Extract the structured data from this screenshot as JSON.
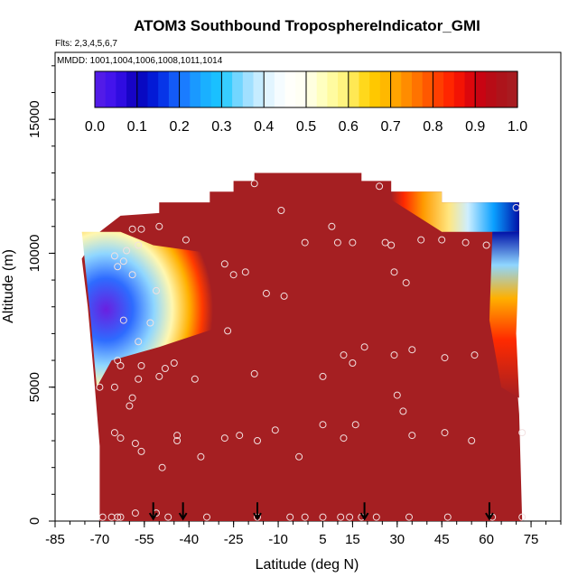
{
  "chart_data": {
    "type": "heatmap",
    "title": "ATOM3 Southbound TroposphereIndicator_GMI",
    "subtitle_flights": "Flts: 2,3,4,5,6,7",
    "subtitle_dates": "MMDD: 1001,1004,1006,1008,1011,1014",
    "xlabel": "Latitude (deg N)",
    "ylabel": "Altitude (m)",
    "xlim": [
      -85,
      85
    ],
    "ylim": [
      0,
      17500
    ],
    "x_ticks": [
      -85,
      -70,
      -55,
      -40,
      -25,
      -10,
      5,
      15,
      30,
      45,
      60,
      75
    ],
    "x_tick_labels": [
      "-85",
      "-70",
      "-55",
      "-40",
      "-25",
      "-10",
      "5",
      "15",
      "30",
      "45",
      "60",
      "75"
    ],
    "y_ticks": [
      0,
      5000,
      10000,
      15000
    ],
    "y_tick_labels": [
      "0",
      "5000",
      "10000",
      "15000"
    ],
    "colorbar": {
      "min": 0.0,
      "max": 1.0,
      "tick_labels": [
        "0.0",
        "0.1",
        "0.2",
        "0.3",
        "0.4",
        "0.5",
        "0.6",
        "0.7",
        "0.8",
        "0.9",
        "1.0"
      ]
    },
    "dominant_value": 1.0,
    "domain_outline": [
      [
        -70,
        0
      ],
      [
        -70,
        2800
      ],
      [
        -72,
        5500
      ],
      [
        -74,
        8000
      ],
      [
        -76,
        9800
      ],
      [
        -70,
        10800
      ],
      [
        -63,
        11400
      ],
      [
        -50,
        11500
      ],
      [
        -50,
        11900
      ],
      [
        -33,
        11900
      ],
      [
        -33,
        12300
      ],
      [
        -25,
        12300
      ],
      [
        -25,
        12700
      ],
      [
        -18,
        12700
      ],
      [
        -18,
        13000
      ],
      [
        18,
        13000
      ],
      [
        18,
        12700
      ],
      [
        28,
        12700
      ],
      [
        28,
        12300
      ],
      [
        45,
        12300
      ],
      [
        45,
        11900
      ],
      [
        71,
        11900
      ],
      [
        71,
        10000
      ],
      [
        69,
        7000
      ],
      [
        71,
        4000
      ],
      [
        72,
        0
      ]
    ],
    "low_value_regions": [
      {
        "description": "southern upper band",
        "lat_range": [
          -76,
          -33
        ],
        "alt_range": [
          5000,
          10800
        ],
        "min_value": 0.0
      },
      {
        "description": "northern upper band",
        "lat_range": [
          28,
          71
        ],
        "alt_range": [
          5000,
          12300
        ],
        "min_value": 0.1
      }
    ],
    "sample_points": [
      [
        -69,
        150
      ],
      [
        -66,
        150
      ],
      [
        -64,
        150
      ],
      [
        -63,
        150
      ],
      [
        -58,
        300
      ],
      [
        -51,
        300
      ],
      [
        -47,
        150
      ],
      [
        -34,
        150
      ],
      [
        -17,
        150
      ],
      [
        -6,
        150
      ],
      [
        -1,
        150
      ],
      [
        5,
        150
      ],
      [
        11,
        150
      ],
      [
        14,
        150
      ],
      [
        18,
        150
      ],
      [
        23,
        150
      ],
      [
        34,
        150
      ],
      [
        47,
        150
      ],
      [
        62,
        150
      ],
      [
        72,
        150
      ],
      [
        -58,
        2900
      ],
      [
        -56,
        2600
      ],
      [
        -49,
        2000
      ],
      [
        -44,
        3000
      ],
      [
        -44,
        3200
      ],
      [
        -36,
        2400
      ],
      [
        -28,
        3100
      ],
      [
        -23,
        3200
      ],
      [
        -17,
        3000
      ],
      [
        -11,
        3400
      ],
      [
        -3,
        2400
      ],
      [
        5,
        3600
      ],
      [
        12,
        3100
      ],
      [
        16,
        3600
      ],
      [
        32,
        4100
      ],
      [
        35,
        3200
      ],
      [
        46,
        3300
      ],
      [
        55,
        3000
      ],
      [
        72,
        3300
      ],
      [
        -65,
        3300
      ],
      [
        -63,
        3100
      ],
      [
        -60,
        4300
      ],
      [
        -59,
        4600
      ],
      [
        -57,
        5300
      ],
      [
        -56,
        5800
      ],
      [
        -50,
        5400
      ],
      [
        -48,
        5700
      ],
      [
        -45,
        5900
      ],
      [
        -38,
        5300
      ],
      [
        -18,
        5500
      ],
      [
        5,
        5400
      ],
      [
        12,
        6200
      ],
      [
        15,
        5900
      ],
      [
        19,
        6500
      ],
      [
        29,
        6200
      ],
      [
        30,
        4700
      ],
      [
        35,
        6400
      ],
      [
        46,
        6100
      ],
      [
        56,
        6200
      ],
      [
        -70,
        5000
      ],
      [
        -65,
        5000
      ],
      [
        -63,
        5800
      ],
      [
        -64,
        6000
      ],
      [
        -57,
        6700
      ],
      [
        -62,
        7500
      ],
      [
        -53,
        7400
      ],
      [
        -27,
        7100
      ],
      [
        -14,
        8500
      ],
      [
        -8,
        8400
      ],
      [
        -51,
        8600
      ],
      [
        -25,
        9200
      ],
      [
        -21,
        9300
      ],
      [
        -59,
        9200
      ],
      [
        -64,
        9500
      ],
      [
        -62,
        9700
      ],
      [
        -65,
        9900
      ],
      [
        -61,
        10100
      ],
      [
        -57,
        10300
      ],
      [
        -41,
        10500
      ],
      [
        -28,
        9600
      ],
      [
        -59,
        10900
      ],
      [
        -56,
        10900
      ],
      [
        -50,
        11000
      ],
      [
        -9,
        11600
      ],
      [
        -1,
        10400
      ],
      [
        10,
        10400
      ],
      [
        15,
        10400
      ],
      [
        8,
        11000
      ],
      [
        26,
        10400
      ],
      [
        28,
        10300
      ],
      [
        29,
        9300
      ],
      [
        33,
        8900
      ],
      [
        38,
        10500
      ],
      [
        45,
        10500
      ],
      [
        53,
        10400
      ],
      [
        60,
        10300
      ],
      [
        70,
        11700
      ],
      [
        -18,
        12600
      ],
      [
        24,
        12500
      ]
    ]
  }
}
